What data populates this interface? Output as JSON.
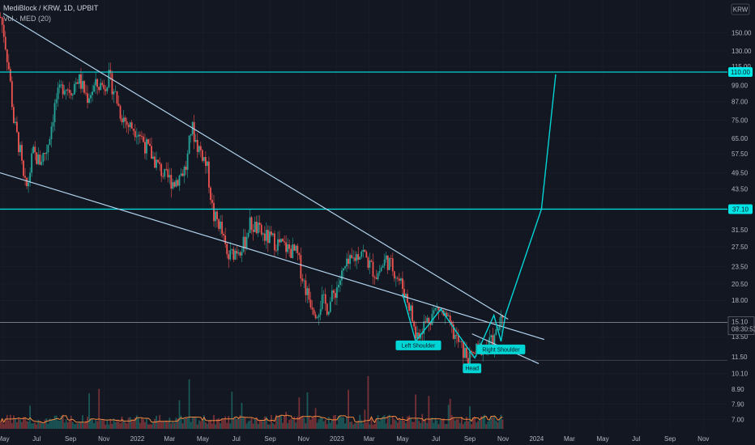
{
  "header": {
    "symbol": "MediBlock / KRW, 1D, UPBIT",
    "indicator": "Vol · MED (20)"
  },
  "currency_badge": "KRW",
  "price_label": {
    "price": "15.10",
    "countdown": "08:30:53"
  },
  "colors": {
    "background": "#131722",
    "up": "#26a69a",
    "down": "#ef5350",
    "trendline": "#b2d4ee",
    "level": "#00e5e5",
    "pattern": "#00d5d5",
    "volume_ma": "#f0883e"
  },
  "chart_data": {
    "type": "candlestick",
    "title": "MediBlock / KRW, 1D, UPBIT",
    "y_scale": "log",
    "ylim": [
      6.5,
      185
    ],
    "y_ticks": [
      "150.00",
      "130.00",
      "115.00",
      "99.00",
      "87.00",
      "75.00",
      "65.00",
      "57.50",
      "49.50",
      "43.50",
      "37.50",
      "31.50",
      "27.50",
      "23.50",
      "20.50",
      "18.00",
      "13.50",
      "11.50",
      "10.10",
      "8.90",
      "7.90",
      "7.00"
    ],
    "x_ticks": [
      "May",
      "Jul",
      "Sep",
      "Nov",
      "2022",
      "Mar",
      "May",
      "Jul",
      "Sep",
      "Nov",
      "2023",
      "Mar",
      "May",
      "Jul",
      "Sep",
      "Nov",
      "2024",
      "Mar",
      "May",
      "Jul",
      "Sep",
      "Nov"
    ],
    "x_range": [
      "2021-04-25",
      "2024-12-15"
    ],
    "price_path": [
      [
        "2021-04-26",
        170
      ],
      [
        "2021-05-02",
        150
      ],
      [
        "2021-05-12",
        110
      ],
      [
        "2021-05-20",
        75
      ],
      [
        "2021-06-01",
        58
      ],
      [
        "2021-06-08",
        45
      ],
      [
        "2021-06-14",
        44
      ],
      [
        "2021-06-24",
        58
      ],
      [
        "2021-07-06",
        54
      ],
      [
        "2021-07-20",
        60
      ],
      [
        "2021-08-05",
        88
      ],
      [
        "2021-08-20",
        100
      ],
      [
        "2021-09-01",
        95
      ],
      [
        "2021-09-15",
        105
      ],
      [
        "2021-10-01",
        90
      ],
      [
        "2021-10-15",
        98
      ],
      [
        "2021-11-01",
        100
      ],
      [
        "2021-11-10",
        105
      ],
      [
        "2021-11-20",
        95
      ],
      [
        "2021-12-01",
        80
      ],
      [
        "2021-12-15",
        72
      ],
      [
        "2022-01-01",
        70
      ],
      [
        "2022-01-15",
        62
      ],
      [
        "2022-02-01",
        55
      ],
      [
        "2022-02-20",
        48
      ],
      [
        "2022-03-10",
        46
      ],
      [
        "2022-04-01",
        52
      ],
      [
        "2022-04-10",
        72
      ],
      [
        "2022-04-20",
        62
      ],
      [
        "2022-05-01",
        57
      ],
      [
        "2022-05-10",
        50
      ],
      [
        "2022-05-20",
        35
      ],
      [
        "2022-06-01",
        33
      ],
      [
        "2022-06-15",
        25
      ],
      [
        "2022-07-01",
        27
      ],
      [
        "2022-07-15",
        28
      ],
      [
        "2022-07-25",
        33
      ],
      [
        "2022-08-05",
        32
      ],
      [
        "2022-08-20",
        30
      ],
      [
        "2022-09-05",
        29
      ],
      [
        "2022-09-20",
        28
      ],
      [
        "2022-10-05",
        27
      ],
      [
        "2022-10-20",
        26
      ],
      [
        "2022-11-01",
        21
      ],
      [
        "2022-11-10",
        18.5
      ],
      [
        "2022-11-25",
        16.5
      ],
      [
        "2022-12-05",
        18
      ],
      [
        "2022-12-15",
        17
      ],
      [
        "2023-01-01",
        20
      ],
      [
        "2023-01-15",
        23
      ],
      [
        "2023-02-01",
        25
      ],
      [
        "2023-02-15",
        27
      ],
      [
        "2023-03-01",
        24
      ],
      [
        "2023-03-15",
        22
      ],
      [
        "2023-04-01",
        25
      ],
      [
        "2023-04-15",
        23
      ],
      [
        "2023-05-01",
        20
      ],
      [
        "2023-05-15",
        17
      ],
      [
        "2023-05-25",
        13.5
      ],
      [
        "2023-06-05",
        14.5
      ],
      [
        "2023-06-20",
        15.8
      ],
      [
        "2023-07-05",
        17
      ],
      [
        "2023-07-20",
        15.5
      ],
      [
        "2023-08-05",
        13.5
      ],
      [
        "2023-08-20",
        12
      ],
      [
        "2023-09-01",
        11.3
      ],
      [
        "2023-09-15",
        12.2
      ],
      [
        "2023-10-01",
        12.6
      ],
      [
        "2023-10-15",
        13
      ],
      [
        "2023-10-25",
        15
      ],
      [
        "2023-11-01",
        15.1
      ]
    ],
    "levels": [
      110,
      37.1
    ],
    "level_labels": [
      "110.00",
      "37.10"
    ],
    "trendlines": [
      {
        "from": [
          "2021-05-01",
          175
        ],
        "to": [
          "2023-11-10",
          15.5
        ]
      },
      {
        "from": [
          "2021-04-25",
          49.5
        ],
        "to": [
          "2024-01-15",
          13.2
        ]
      },
      {
        "from": [
          "2023-09-05",
          13.8
        ],
        "to": [
          "2024-01-05",
          10.9
        ]
      }
    ],
    "pattern_points": [
      [
        "2023-05-01",
        19
      ],
      [
        "2023-05-25",
        13.0
      ],
      [
        "2023-07-10",
        16.8
      ],
      [
        "2023-08-01",
        14.6
      ],
      [
        "2023-08-10",
        13.8
      ],
      [
        "2023-09-10",
        11.4
      ],
      [
        "2023-10-15",
        16.0
      ],
      [
        "2023-10-28",
        13.0
      ],
      [
        "2023-11-05",
        16.0
      ],
      [
        "2024-01-10",
        37.1
      ],
      [
        "2024-02-05",
        108
      ]
    ],
    "annotations": [
      {
        "text": "Left Shoulder",
        "date": "2023-05-30",
        "price": 12.6
      },
      {
        "text": "Head",
        "date": "2023-09-05",
        "price": 10.5
      },
      {
        "text": "Right Shoulder",
        "date": "2023-10-28",
        "price": 12.2
      }
    ]
  }
}
